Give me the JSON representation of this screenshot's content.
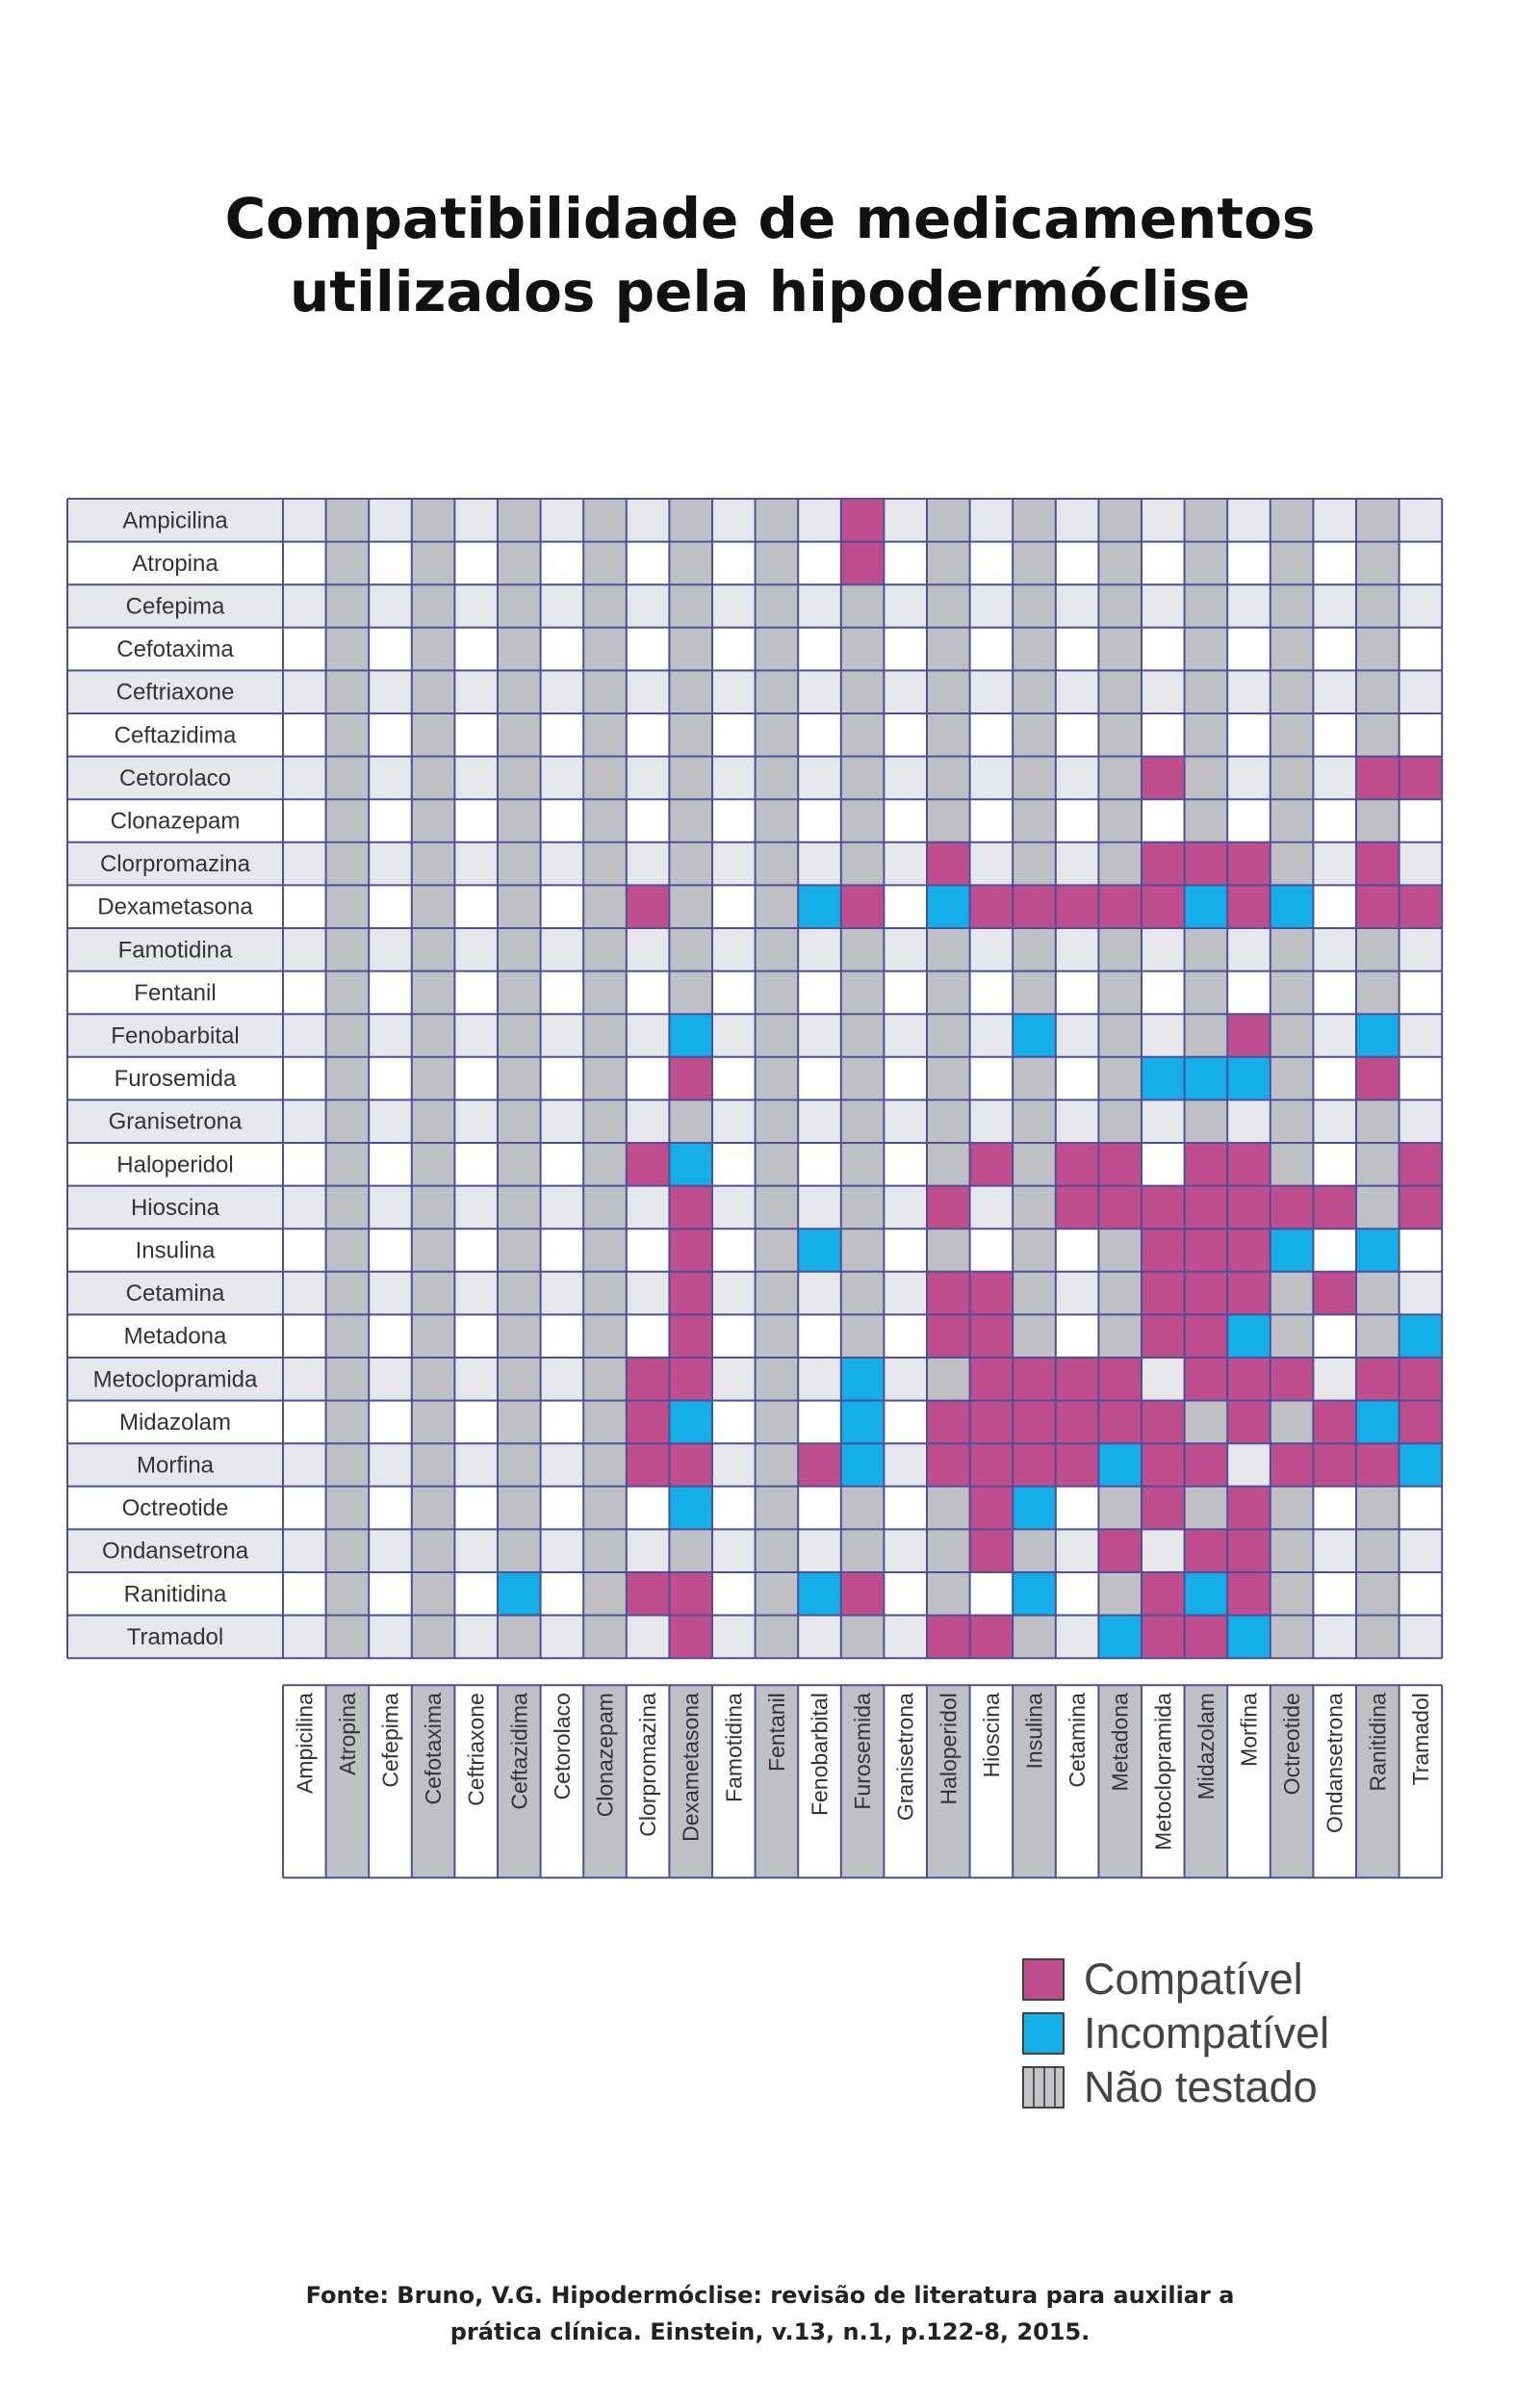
{
  "title": {
    "line1": "Compatibilidade de medicamentos",
    "line2": "utilizados pela hipodermóclise"
  },
  "legend": {
    "compatible": "Compatível",
    "incompatible": "Incompatível",
    "not_tested": "Não testado"
  },
  "colors": {
    "compatible": "#c04e8c",
    "incompatible": "#14aee8",
    "row_band": "#e6e7ea",
    "col_band": "#bfc0c4",
    "grid": "#4b4f9c"
  },
  "source": {
    "line1": "Fonte: Bruno, V.G. Hipodermóclise: revisão de literatura para auxiliar a",
    "line2": "prática clínica. Einstein, v.13, n.1, p.122-8, 2015."
  },
  "chart_data": {
    "type": "heatmap",
    "drugs": [
      "Ampicilina",
      "Atropina",
      "Cefepima",
      "Cefotaxima",
      "Ceftriaxone",
      "Ceftazidima",
      "Cetorolaco",
      "Clonazepam",
      "Clorpromazina",
      "Dexametasona",
      "Famotidina",
      "Fentanil",
      "Fenobarbital",
      "Furosemida",
      "Granisetrona",
      "Haloperidol",
      "Hioscina",
      "Insulina",
      "Cetamina",
      "Metadona",
      "Metoclopramida",
      "Midazolam",
      "Morfina",
      "Octreotide",
      "Ondansetrona",
      "Ranitidina",
      "Tramadol"
    ],
    "categories": {
      "C": "compatible",
      "I": "incompatible"
    },
    "cells": [
      {
        "row": "Ampicilina",
        "col": "Furosemida",
        "status": "C"
      },
      {
        "row": "Atropina",
        "col": "Furosemida",
        "status": "C"
      },
      {
        "row": "Cetorolaco",
        "col": "Metoclopramida",
        "status": "C"
      },
      {
        "row": "Cetorolaco",
        "col": "Ranitidina",
        "status": "C"
      },
      {
        "row": "Cetorolaco",
        "col": "Tramadol",
        "status": "C"
      },
      {
        "row": "Clorpromazina",
        "col": "Haloperidol",
        "status": "C"
      },
      {
        "row": "Clorpromazina",
        "col": "Metoclopramida",
        "status": "C"
      },
      {
        "row": "Clorpromazina",
        "col": "Midazolam",
        "status": "C"
      },
      {
        "row": "Clorpromazina",
        "col": "Morfina",
        "status": "C"
      },
      {
        "row": "Clorpromazina",
        "col": "Ranitidina",
        "status": "C"
      },
      {
        "row": "Dexametasona",
        "col": "Clorpromazina",
        "status": "C"
      },
      {
        "row": "Dexametasona",
        "col": "Fenobarbital",
        "status": "I"
      },
      {
        "row": "Dexametasona",
        "col": "Furosemida",
        "status": "C"
      },
      {
        "row": "Dexametasona",
        "col": "Haloperidol",
        "status": "I"
      },
      {
        "row": "Dexametasona",
        "col": "Hioscina",
        "status": "C"
      },
      {
        "row": "Dexametasona",
        "col": "Insulina",
        "status": "C"
      },
      {
        "row": "Dexametasona",
        "col": "Cetamina",
        "status": "C"
      },
      {
        "row": "Dexametasona",
        "col": "Metadona",
        "status": "C"
      },
      {
        "row": "Dexametasona",
        "col": "Metoclopramida",
        "status": "C"
      },
      {
        "row": "Dexametasona",
        "col": "Midazolam",
        "status": "I"
      },
      {
        "row": "Dexametasona",
        "col": "Morfina",
        "status": "C"
      },
      {
        "row": "Dexametasona",
        "col": "Octreotide",
        "status": "I"
      },
      {
        "row": "Dexametasona",
        "col": "Ranitidina",
        "status": "C"
      },
      {
        "row": "Dexametasona",
        "col": "Tramadol",
        "status": "C"
      },
      {
        "row": "Fenobarbital",
        "col": "Dexametasona",
        "status": "I"
      },
      {
        "row": "Fenobarbital",
        "col": "Insulina",
        "status": "I"
      },
      {
        "row": "Fenobarbital",
        "col": "Morfina",
        "status": "C"
      },
      {
        "row": "Fenobarbital",
        "col": "Ranitidina",
        "status": "I"
      },
      {
        "row": "Furosemida",
        "col": "Dexametasona",
        "status": "C"
      },
      {
        "row": "Furosemida",
        "col": "Metoclopramida",
        "status": "I"
      },
      {
        "row": "Furosemida",
        "col": "Midazolam",
        "status": "I"
      },
      {
        "row": "Furosemida",
        "col": "Morfina",
        "status": "I"
      },
      {
        "row": "Furosemida",
        "col": "Ranitidina",
        "status": "C"
      },
      {
        "row": "Haloperidol",
        "col": "Clorpromazina",
        "status": "C"
      },
      {
        "row": "Haloperidol",
        "col": "Dexametasona",
        "status": "I"
      },
      {
        "row": "Haloperidol",
        "col": "Hioscina",
        "status": "C"
      },
      {
        "row": "Haloperidol",
        "col": "Cetamina",
        "status": "C"
      },
      {
        "row": "Haloperidol",
        "col": "Metadona",
        "status": "C"
      },
      {
        "row": "Haloperidol",
        "col": "Midazolam",
        "status": "C"
      },
      {
        "row": "Haloperidol",
        "col": "Morfina",
        "status": "C"
      },
      {
        "row": "Haloperidol",
        "col": "Tramadol",
        "status": "C"
      },
      {
        "row": "Hioscina",
        "col": "Dexametasona",
        "status": "C"
      },
      {
        "row": "Hioscina",
        "col": "Haloperidol",
        "status": "C"
      },
      {
        "row": "Hioscina",
        "col": "Cetamina",
        "status": "C"
      },
      {
        "row": "Hioscina",
        "col": "Metadona",
        "status": "C"
      },
      {
        "row": "Hioscina",
        "col": "Metoclopramida",
        "status": "C"
      },
      {
        "row": "Hioscina",
        "col": "Midazolam",
        "status": "C"
      },
      {
        "row": "Hioscina",
        "col": "Morfina",
        "status": "C"
      },
      {
        "row": "Hioscina",
        "col": "Octreotide",
        "status": "C"
      },
      {
        "row": "Hioscina",
        "col": "Ondansetrona",
        "status": "C"
      },
      {
        "row": "Hioscina",
        "col": "Tramadol",
        "status": "C"
      },
      {
        "row": "Insulina",
        "col": "Dexametasona",
        "status": "C"
      },
      {
        "row": "Insulina",
        "col": "Fenobarbital",
        "status": "I"
      },
      {
        "row": "Insulina",
        "col": "Metoclopramida",
        "status": "C"
      },
      {
        "row": "Insulina",
        "col": "Midazolam",
        "status": "C"
      },
      {
        "row": "Insulina",
        "col": "Morfina",
        "status": "C"
      },
      {
        "row": "Insulina",
        "col": "Octreotide",
        "status": "I"
      },
      {
        "row": "Insulina",
        "col": "Ranitidina",
        "status": "I"
      },
      {
        "row": "Cetamina",
        "col": "Dexametasona",
        "status": "C"
      },
      {
        "row": "Cetamina",
        "col": "Haloperidol",
        "status": "C"
      },
      {
        "row": "Cetamina",
        "col": "Hioscina",
        "status": "C"
      },
      {
        "row": "Cetamina",
        "col": "Metoclopramida",
        "status": "C"
      },
      {
        "row": "Cetamina",
        "col": "Midazolam",
        "status": "C"
      },
      {
        "row": "Cetamina",
        "col": "Morfina",
        "status": "C"
      },
      {
        "row": "Cetamina",
        "col": "Ondansetrona",
        "status": "C"
      },
      {
        "row": "Metadona",
        "col": "Dexametasona",
        "status": "C"
      },
      {
        "row": "Metadona",
        "col": "Haloperidol",
        "status": "C"
      },
      {
        "row": "Metadona",
        "col": "Hioscina",
        "status": "C"
      },
      {
        "row": "Metadona",
        "col": "Metoclopramida",
        "status": "C"
      },
      {
        "row": "Metadona",
        "col": "Midazolam",
        "status": "C"
      },
      {
        "row": "Metadona",
        "col": "Morfina",
        "status": "I"
      },
      {
        "row": "Metadona",
        "col": "Tramadol",
        "status": "I"
      },
      {
        "row": "Metoclopramida",
        "col": "Clorpromazina",
        "status": "C"
      },
      {
        "row": "Metoclopramida",
        "col": "Dexametasona",
        "status": "C"
      },
      {
        "row": "Metoclopramida",
        "col": "Furosemida",
        "status": "I"
      },
      {
        "row": "Metoclopramida",
        "col": "Hioscina",
        "status": "C"
      },
      {
        "row": "Metoclopramida",
        "col": "Insulina",
        "status": "C"
      },
      {
        "row": "Metoclopramida",
        "col": "Cetamina",
        "status": "C"
      },
      {
        "row": "Metoclopramida",
        "col": "Metadona",
        "status": "C"
      },
      {
        "row": "Metoclopramida",
        "col": "Midazolam",
        "status": "C"
      },
      {
        "row": "Metoclopramida",
        "col": "Morfina",
        "status": "C"
      },
      {
        "row": "Metoclopramida",
        "col": "Octreotide",
        "status": "C"
      },
      {
        "row": "Metoclopramida",
        "col": "Ranitidina",
        "status": "C"
      },
      {
        "row": "Metoclopramida",
        "col": "Tramadol",
        "status": "C"
      },
      {
        "row": "Midazolam",
        "col": "Clorpromazina",
        "status": "C"
      },
      {
        "row": "Midazolam",
        "col": "Dexametasona",
        "status": "I"
      },
      {
        "row": "Midazolam",
        "col": "Furosemida",
        "status": "I"
      },
      {
        "row": "Midazolam",
        "col": "Haloperidol",
        "status": "C"
      },
      {
        "row": "Midazolam",
        "col": "Hioscina",
        "status": "C"
      },
      {
        "row": "Midazolam",
        "col": "Insulina",
        "status": "C"
      },
      {
        "row": "Midazolam",
        "col": "Cetamina",
        "status": "C"
      },
      {
        "row": "Midazolam",
        "col": "Metadona",
        "status": "C"
      },
      {
        "row": "Midazolam",
        "col": "Metoclopramida",
        "status": "C"
      },
      {
        "row": "Midazolam",
        "col": "Morfina",
        "status": "C"
      },
      {
        "row": "Midazolam",
        "col": "Ondansetrona",
        "status": "C"
      },
      {
        "row": "Midazolam",
        "col": "Ranitidina",
        "status": "I"
      },
      {
        "row": "Midazolam",
        "col": "Tramadol",
        "status": "C"
      },
      {
        "row": "Morfina",
        "col": "Clorpromazina",
        "status": "C"
      },
      {
        "row": "Morfina",
        "col": "Dexametasona",
        "status": "C"
      },
      {
        "row": "Morfina",
        "col": "Fenobarbital",
        "status": "C"
      },
      {
        "row": "Morfina",
        "col": "Furosemida",
        "status": "I"
      },
      {
        "row": "Morfina",
        "col": "Haloperidol",
        "status": "C"
      },
      {
        "row": "Morfina",
        "col": "Hioscina",
        "status": "C"
      },
      {
        "row": "Morfina",
        "col": "Insulina",
        "status": "C"
      },
      {
        "row": "Morfina",
        "col": "Cetamina",
        "status": "C"
      },
      {
        "row": "Morfina",
        "col": "Metadona",
        "status": "I"
      },
      {
        "row": "Morfina",
        "col": "Metoclopramida",
        "status": "C"
      },
      {
        "row": "Morfina",
        "col": "Midazolam",
        "status": "C"
      },
      {
        "row": "Morfina",
        "col": "Octreotide",
        "status": "C"
      },
      {
        "row": "Morfina",
        "col": "Ondansetrona",
        "status": "C"
      },
      {
        "row": "Morfina",
        "col": "Ranitidina",
        "status": "C"
      },
      {
        "row": "Morfina",
        "col": "Tramadol",
        "status": "I"
      },
      {
        "row": "Octreotide",
        "col": "Dexametasona",
        "status": "I"
      },
      {
        "row": "Octreotide",
        "col": "Hioscina",
        "status": "C"
      },
      {
        "row": "Octreotide",
        "col": "Insulina",
        "status": "I"
      },
      {
        "row": "Octreotide",
        "col": "Metoclopramida",
        "status": "C"
      },
      {
        "row": "Octreotide",
        "col": "Morfina",
        "status": "C"
      },
      {
        "row": "Ondansetrona",
        "col": "Hioscina",
        "status": "C"
      },
      {
        "row": "Ondansetrona",
        "col": "Metadona",
        "status": "C"
      },
      {
        "row": "Ondansetrona",
        "col": "Midazolam",
        "status": "C"
      },
      {
        "row": "Ondansetrona",
        "col": "Morfina",
        "status": "C"
      },
      {
        "row": "Ranitidina",
        "col": "Ceftazidima",
        "status": "I"
      },
      {
        "row": "Ranitidina",
        "col": "Clorpromazina",
        "status": "C"
      },
      {
        "row": "Ranitidina",
        "col": "Dexametasona",
        "status": "C"
      },
      {
        "row": "Ranitidina",
        "col": "Fenobarbital",
        "status": "I"
      },
      {
        "row": "Ranitidina",
        "col": "Furosemida",
        "status": "C"
      },
      {
        "row": "Ranitidina",
        "col": "Insulina",
        "status": "I"
      },
      {
        "row": "Ranitidina",
        "col": "Metoclopramida",
        "status": "C"
      },
      {
        "row": "Ranitidina",
        "col": "Midazolam",
        "status": "I"
      },
      {
        "row": "Ranitidina",
        "col": "Morfina",
        "status": "C"
      },
      {
        "row": "Tramadol",
        "col": "Dexametasona",
        "status": "C"
      },
      {
        "row": "Tramadol",
        "col": "Haloperidol",
        "status": "C"
      },
      {
        "row": "Tramadol",
        "col": "Hioscina",
        "status": "C"
      },
      {
        "row": "Tramadol",
        "col": "Metadona",
        "status": "I"
      },
      {
        "row": "Tramadol",
        "col": "Metoclopramida",
        "status": "C"
      },
      {
        "row": "Tramadol",
        "col": "Midazolam",
        "status": "C"
      },
      {
        "row": "Tramadol",
        "col": "Morfina",
        "status": "I"
      }
    ]
  }
}
